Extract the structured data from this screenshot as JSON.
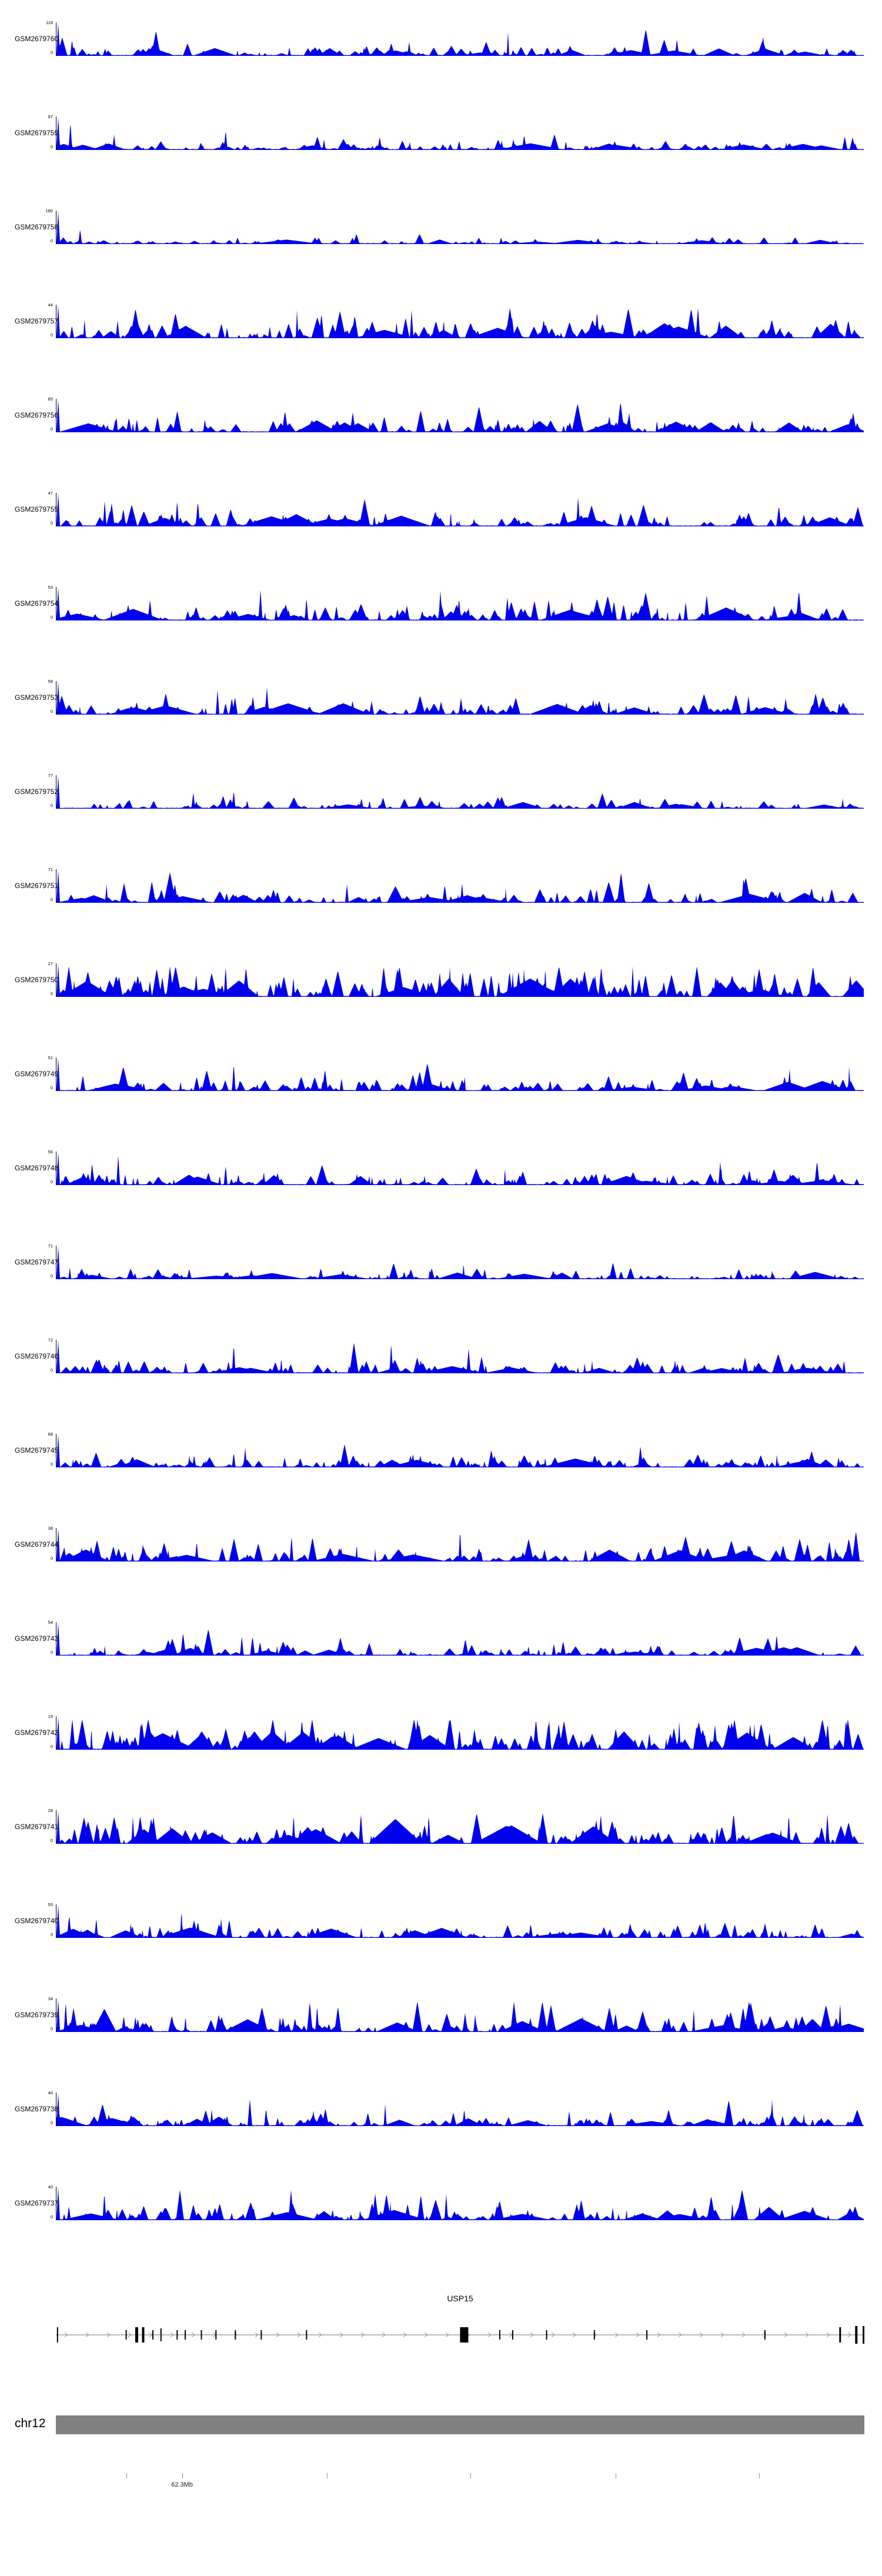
{
  "chart_data": {
    "type": "area",
    "subtype": "genome-coverage-tracks",
    "signal_color": "#0000EE",
    "y_base_label": "0",
    "region": {
      "chromosome": "chr12",
      "gene": "USP15",
      "position_label": "62.3Mb"
    },
    "tracks": [
      {
        "label": "GSM2679760",
        "ymax": 118,
        "ymin": 0,
        "seed": 11,
        "density": 0.9,
        "amp": 0.16,
        "spikes": [
          {
            "x": 0.02,
            "h": 0.5
          }
        ]
      },
      {
        "label": "GSM2679759",
        "ymax": 97,
        "ymin": 0,
        "seed": 12,
        "density": 0.8,
        "amp": 0.15,
        "spikes": [
          {
            "x": 0.018,
            "h": 0.85
          },
          {
            "x": 0.21,
            "h": 0.6
          }
        ]
      },
      {
        "label": "GSM2679758",
        "ymax": 180,
        "ymin": 0,
        "seed": 13,
        "density": 0.7,
        "amp": 0.1,
        "spikes": [
          {
            "x": 0.03,
            "h": 0.45
          }
        ]
      },
      {
        "label": "GSM2679757",
        "ymax": 44,
        "ymin": 0,
        "seed": 14,
        "density": 1.0,
        "amp": 0.32,
        "spikes": [
          {
            "x": 0.44,
            "h": 0.85
          }
        ]
      },
      {
        "label": "GSM2679756",
        "ymax": 85,
        "ymin": 0,
        "seed": 15,
        "density": 1.0,
        "amp": 0.26,
        "spikes": []
      },
      {
        "label": "GSM2679755",
        "ymax": 47,
        "ymin": 0,
        "seed": 16,
        "density": 0.9,
        "amp": 0.26,
        "spikes": [
          {
            "x": 0.15,
            "h": 0.8
          }
        ]
      },
      {
        "label": "GSM2679754",
        "ymax": 53,
        "ymin": 0,
        "seed": 17,
        "density": 1.1,
        "amp": 0.28,
        "spikes": [
          {
            "x": 0.31,
            "h": 0.7
          }
        ]
      },
      {
        "label": "GSM2679753",
        "ymax": 58,
        "ymin": 0,
        "seed": 18,
        "density": 1.0,
        "amp": 0.24,
        "spikes": [
          {
            "x": 0.2,
            "h": 0.75
          }
        ]
      },
      {
        "label": "GSM2679752",
        "ymax": 77,
        "ymin": 0,
        "seed": 19,
        "density": 0.8,
        "amp": 0.14,
        "spikes": [
          {
            "x": 0.17,
            "h": 0.5
          },
          {
            "x": 0.22,
            "h": 0.55
          }
        ]
      },
      {
        "label": "GSM2679751",
        "ymax": 71,
        "ymin": 0,
        "seed": 20,
        "density": 0.9,
        "amp": 0.22,
        "spikes": [
          {
            "x": 0.36,
            "h": 0.55
          },
          {
            "x": 0.42,
            "h": 0.5,
            "w": 14
          }
        ]
      },
      {
        "label": "GSM2679750",
        "ymax": 27,
        "ymin": 0,
        "seed": 21,
        "density": 1.3,
        "amp": 0.45,
        "spikes": [
          {
            "x": 0.21,
            "h": 0.95
          }
        ]
      },
      {
        "label": "GSM2679749",
        "ymax": 51,
        "ymin": 0,
        "seed": 22,
        "density": 1.0,
        "amp": 0.22,
        "spikes": [
          {
            "x": 0.22,
            "h": 0.85
          }
        ]
      },
      {
        "label": "GSM2679748",
        "ymax": 56,
        "ymin": 0,
        "seed": 23,
        "density": 1.0,
        "amp": 0.22,
        "spikes": [
          {
            "x": 0.21,
            "h": 0.6
          },
          {
            "x": 0.52,
            "h": 0.5,
            "w": 10
          }
        ]
      },
      {
        "label": "GSM2679747",
        "ymax": 71,
        "ymin": 0,
        "seed": 24,
        "density": 0.9,
        "amp": 0.15,
        "spikes": []
      },
      {
        "label": "GSM2679746",
        "ymax": 72,
        "ymin": 0,
        "seed": 25,
        "density": 1.0,
        "amp": 0.2,
        "spikes": [
          {
            "x": 0.22,
            "h": 0.9
          }
        ]
      },
      {
        "label": "GSM2679745",
        "ymax": 68,
        "ymin": 0,
        "seed": 26,
        "density": 1.0,
        "amp": 0.2,
        "spikes": [
          {
            "x": 0.22,
            "h": 0.45
          }
        ]
      },
      {
        "label": "GSM2679744",
        "ymax": 38,
        "ymin": 0,
        "seed": 27,
        "density": 1.0,
        "amp": 0.26,
        "spikes": [
          {
            "x": 0.5,
            "h": 1.0,
            "w": 2.5
          },
          {
            "x": 0.22,
            "h": 0.6
          }
        ]
      },
      {
        "label": "GSM2679743",
        "ymax": 54,
        "ymin": 0,
        "seed": 28,
        "density": 0.9,
        "amp": 0.18,
        "spikes": [
          {
            "x": 0.23,
            "h": 0.6
          }
        ]
      },
      {
        "label": "GSM2679742",
        "ymax": 19,
        "ymin": 0,
        "seed": 29,
        "density": 1.3,
        "amp": 0.5,
        "spikes": []
      },
      {
        "label": "GSM2679741",
        "ymax": 28,
        "ymin": 0,
        "seed": 30,
        "density": 1.1,
        "amp": 0.4,
        "spikes": [
          {
            "x": 0.42,
            "h": 0.75,
            "w": 45
          },
          {
            "x": 0.52,
            "h": 0.8
          }
        ]
      },
      {
        "label": "GSM2679740",
        "ymax": 55,
        "ymin": 0,
        "seed": 31,
        "density": 1.0,
        "amp": 0.22,
        "spikes": [
          {
            "x": 0.05,
            "h": 0.6
          }
        ]
      },
      {
        "label": "GSM2679739",
        "ymax": 34,
        "ymin": 0,
        "seed": 32,
        "density": 1.0,
        "amp": 0.3,
        "spikes": [
          {
            "x": 0.06,
            "h": 0.7,
            "w": 20
          }
        ]
      },
      {
        "label": "GSM2679738",
        "ymax": 46,
        "ymin": 0,
        "seed": 33,
        "density": 1.0,
        "amp": 0.2,
        "spikes": [
          {
            "x": 0.26,
            "h": 0.55
          }
        ]
      },
      {
        "label": "GSM2679737",
        "ymax": 40,
        "ymin": 0,
        "seed": 34,
        "density": 1.0,
        "amp": 0.3,
        "spikes": [
          {
            "x": 0.06,
            "h": 0.85
          }
        ]
      }
    ],
    "gene_track": {
      "gene_label": "USP15",
      "strand_direction": "right",
      "line_color": "#777777",
      "exon_color": "#000000",
      "exons": [
        {
          "x": 0.002,
          "w": 2,
          "h": 26
        },
        {
          "x": 0.087,
          "w": 2,
          "h": 16
        },
        {
          "x": 0.1,
          "w": 5,
          "h": 26
        },
        {
          "x": 0.108,
          "w": 4,
          "h": 26
        },
        {
          "x": 0.12,
          "w": 2,
          "h": 16
        },
        {
          "x": 0.13,
          "w": 2,
          "h": 22
        },
        {
          "x": 0.15,
          "w": 2,
          "h": 16
        },
        {
          "x": 0.16,
          "w": 2,
          "h": 16
        },
        {
          "x": 0.18,
          "w": 2,
          "h": 16
        },
        {
          "x": 0.198,
          "w": 2,
          "h": 16
        },
        {
          "x": 0.222,
          "w": 2,
          "h": 16
        },
        {
          "x": 0.254,
          "w": 2,
          "h": 16
        },
        {
          "x": 0.31,
          "w": 2,
          "h": 16
        },
        {
          "x": 0.505,
          "w": 14,
          "h": 26
        },
        {
          "x": 0.549,
          "w": 2,
          "h": 16
        },
        {
          "x": 0.565,
          "w": 2,
          "h": 16
        },
        {
          "x": 0.607,
          "w": 2,
          "h": 16
        },
        {
          "x": 0.666,
          "w": 2,
          "h": 16
        },
        {
          "x": 0.731,
          "w": 2,
          "h": 16
        },
        {
          "x": 0.877,
          "w": 2,
          "h": 16
        },
        {
          "x": 0.97,
          "w": 3,
          "h": 26
        },
        {
          "x": 0.99,
          "w": 4,
          "h": 30
        },
        {
          "x": 0.999,
          "w": 3,
          "h": 30
        }
      ]
    },
    "ideogram": {
      "chromosome_label": "chr12",
      "color": "#808080"
    },
    "axis": {
      "ticks": [
        0.087,
        0.156,
        0.335,
        0.513,
        0.692,
        0.87
      ],
      "label": "62.3Mb",
      "label_tick": 1
    }
  }
}
